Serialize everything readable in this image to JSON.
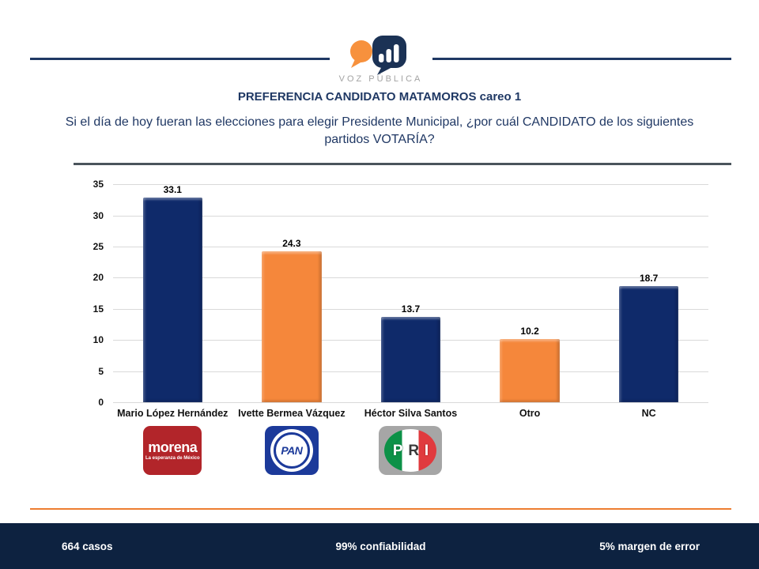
{
  "header": {
    "brand": "VOZ PÚBLICA",
    "title": "PREFERENCIA CANDIDATO MATAMOROS careo 1",
    "question": "Si el día de hoy fueran las elecciones para elegir Presidente Municipal,  ¿por cuál CANDIDATO de los siguientes partidos VOTARÍA?"
  },
  "chart_data": {
    "type": "bar",
    "categories": [
      "Mario López Hernández",
      "Ivette Bermea Vázquez",
      "Héctor Silva Santos",
      "Otro",
      "NC"
    ],
    "values": [
      33.1,
      24.3,
      13.7,
      10.2,
      18.7
    ],
    "value_labels": [
      "33.1",
      "24.3",
      "13.7",
      "10.2",
      "18.7"
    ],
    "bar_colors": [
      "#0f2a6a",
      "#f5873b",
      "#0f2a6a",
      "#f5873b",
      "#0f2a6a"
    ],
    "title": "",
    "xlabel": "",
    "ylabel": "",
    "ylim": [
      0,
      35
    ],
    "ytick_step": 5,
    "grid": true,
    "legend": false
  },
  "parties": [
    {
      "name": "morena",
      "tagline": "La esperanza de México",
      "color": "#b2252a"
    },
    {
      "name": "PAN",
      "color": "#1c3a9a"
    },
    {
      "name": "PRI",
      "letters": [
        "P",
        "R",
        "I"
      ],
      "colors": [
        "#0c9147",
        "#ffffff",
        "#e03a3e"
      ]
    }
  ],
  "footer": {
    "cases": "664 casos",
    "confidence": "99% confiabilidad",
    "margin_of_error": "5% margen de error"
  },
  "colors": {
    "navy_bar": "#0f2a6a",
    "orange_bar": "#f5873b",
    "title_text": "#1f3864",
    "header_rule": "#1f3864",
    "divider_rule": "#4a545c",
    "orange_rule": "#ed7d31",
    "footer_bg": "#0d2240",
    "gridline": "#d9d9d9"
  }
}
